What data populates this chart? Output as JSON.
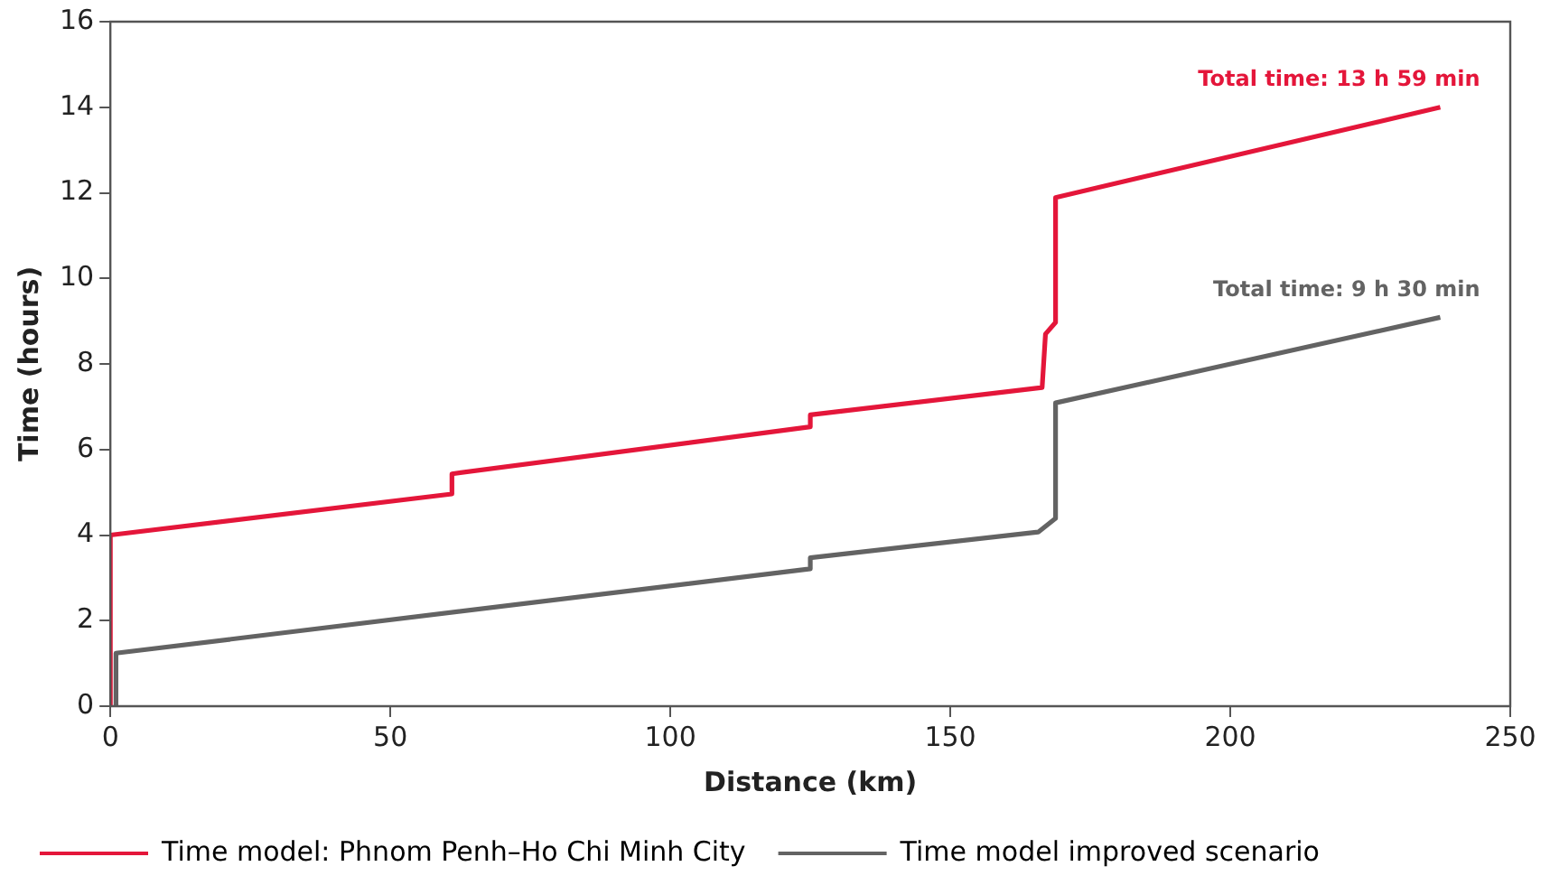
{
  "chart_data": {
    "type": "line",
    "xlabel": "Distance (km)",
    "ylabel": "Time (hours)",
    "xlim": [
      0,
      250
    ],
    "xticks": [
      0,
      50,
      100,
      150,
      200,
      250
    ],
    "ylim": [
      0,
      16
    ],
    "yticks": [
      0,
      2,
      4,
      6,
      8,
      10,
      12,
      14,
      16
    ],
    "grid": false,
    "legend": "bottom",
    "marker": "none",
    "line_style": "solid",
    "series": [
      {
        "name": "Time model: Phnom Penh–Ho Chi Minh City",
        "color": "#e4163a",
        "x": [
          0,
          0,
          61,
          61,
          125,
          125,
          166.4,
          167,
          168.8,
          168.8,
          237.5
        ],
        "values": [
          0,
          4.0,
          4.96,
          5.43,
          6.53,
          6.81,
          7.45,
          8.7,
          8.97,
          11.89,
          14.0
        ]
      },
      {
        "name": "Time model improved scenario",
        "color": "#636363",
        "x": [
          1,
          1,
          125,
          125,
          165.7,
          168.8,
          168.8,
          237.5
        ],
        "values": [
          0,
          1.24,
          3.21,
          3.47,
          4.07,
          4.39,
          7.09,
          9.09
        ]
      }
    ],
    "annotations": [
      {
        "text": "Total time: 13 h 59 min",
        "x": 237.5,
        "y": 14.0
      },
      {
        "text": "Total time: 9 h 30 min",
        "x": 237.5,
        "y": 9.09
      }
    ]
  }
}
